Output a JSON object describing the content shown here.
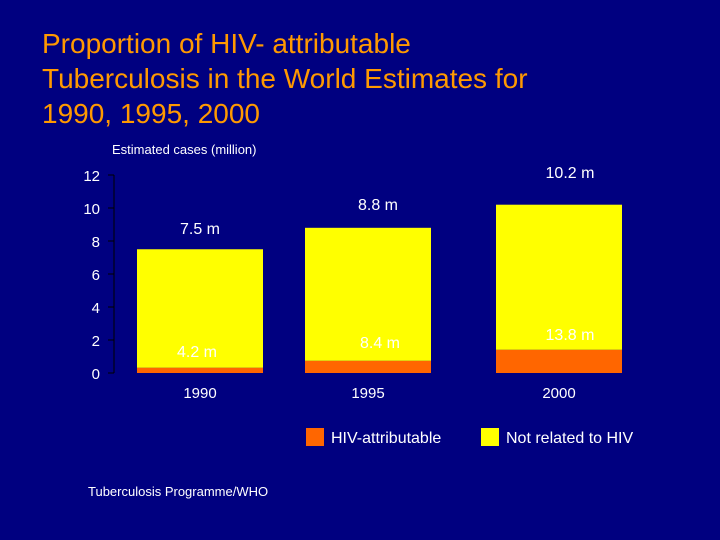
{
  "slide": {
    "title_lines": [
      "Proportion of HIV- attributable",
      "Tuberculosis in the World Estimates for",
      "1990, 1995, 2000"
    ],
    "source": "Tuberculosis Programme/WHO"
  },
  "colors": {
    "background": "#000080",
    "title": "#ff9900",
    "hiv": "#ff6600",
    "not_hiv": "#ffff00",
    "text": "#ffffff"
  },
  "chart_data": {
    "type": "bar",
    "stacked": true,
    "title": "",
    "ylabel": "Estimated cases (million)",
    "xlabel": "",
    "ylim": [
      0,
      12
    ],
    "yticks": [
      0,
      2,
      4,
      6,
      8,
      10,
      12
    ],
    "categories": [
      "1990",
      "1995",
      "2000"
    ],
    "series": [
      {
        "name": "HIV-attributable",
        "color": "#ff6600",
        "values": [
          0.32,
          0.74,
          1.41
        ]
      },
      {
        "name": "Not related to HIV",
        "color": "#ffff00",
        "values": [
          7.18,
          8.06,
          8.79
        ]
      }
    ],
    "annotations": {
      "totals": [
        "7.5 m",
        "8.8 m",
        "10.2 m"
      ],
      "hiv_share": [
        "4.2 m",
        "8.4 m",
        "13.8 m"
      ]
    },
    "legend": [
      "HIV-attributable",
      "Not related to HIV"
    ],
    "legend_position": "bottom-right"
  }
}
